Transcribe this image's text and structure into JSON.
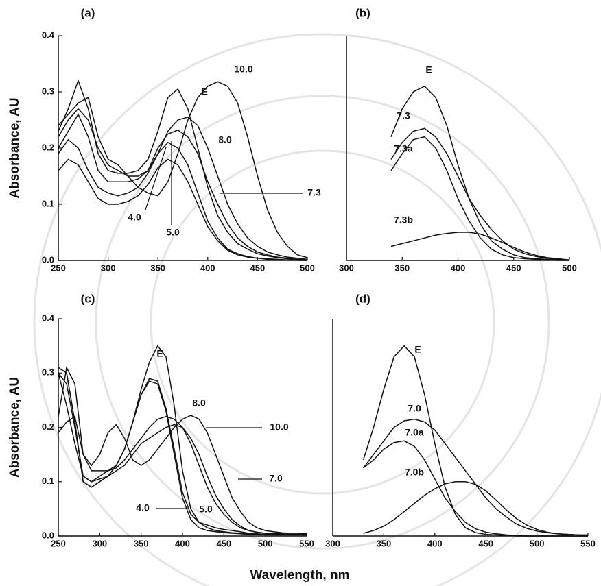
{
  "chart_data": [
    {
      "type": "line",
      "title": "(a)",
      "ylabel": "Absorbance, AU",
      "x": [
        250,
        260,
        270,
        280,
        290,
        300,
        310,
        320,
        330,
        340,
        350,
        360,
        370,
        380,
        390,
        400,
        410,
        420,
        430,
        440,
        450,
        460,
        470,
        480,
        490,
        500
      ],
      "xlim": [
        250,
        500
      ],
      "ylim": [
        0,
        0.4
      ],
      "xticks": [
        250,
        300,
        350,
        400,
        450,
        500
      ],
      "yticks": [
        {
          "value": 0,
          "label": "0.0"
        },
        0.1,
        0.2,
        0.3,
        0.4
      ],
      "series": [
        {
          "name": "E",
          "color": "#111111",
          "values": [
            0.23,
            0.27,
            0.32,
            0.27,
            0.19,
            0.16,
            0.155,
            0.155,
            0.16,
            0.18,
            0.23,
            0.29,
            0.305,
            0.27,
            0.2,
            0.13,
            0.08,
            0.05,
            0.03,
            0.02,
            0.012,
            0.008,
            0.005,
            0.003,
            0.002,
            0.001
          ]
        },
        {
          "name": "10.0",
          "color": "#111111",
          "values": [
            0.24,
            0.26,
            0.28,
            0.29,
            0.22,
            0.18,
            0.17,
            0.15,
            0.13,
            0.12,
            0.115,
            0.14,
            0.19,
            0.25,
            0.29,
            0.31,
            0.318,
            0.31,
            0.28,
            0.22,
            0.15,
            0.09,
            0.05,
            0.025,
            0.01,
            0.005
          ]
        },
        {
          "name": "8.0",
          "color": "#111111",
          "values": [
            0.22,
            0.25,
            0.27,
            0.25,
            0.2,
            0.17,
            0.16,
            0.15,
            0.15,
            0.16,
            0.19,
            0.23,
            0.25,
            0.255,
            0.24,
            0.2,
            0.15,
            0.1,
            0.065,
            0.04,
            0.025,
            0.015,
            0.01,
            0.006,
            0.004,
            0.002
          ]
        },
        {
          "name": "7.3",
          "color": "#111111",
          "values": [
            0.2,
            0.23,
            0.26,
            0.22,
            0.16,
            0.14,
            0.14,
            0.14,
            0.145,
            0.16,
            0.2,
            0.225,
            0.232,
            0.22,
            0.19,
            0.14,
            0.1,
            0.065,
            0.04,
            0.025,
            0.015,
            0.01,
            0.006,
            0.004,
            0.002,
            0.001
          ]
        },
        {
          "name": "5.0",
          "color": "#111111",
          "values": [
            0.19,
            0.215,
            0.2,
            0.16,
            0.13,
            0.12,
            0.115,
            0.12,
            0.13,
            0.155,
            0.19,
            0.21,
            0.2,
            0.17,
            0.12,
            0.07,
            0.04,
            0.02,
            0.012,
            0.007,
            0.004,
            0.003,
            0.002,
            0.001,
            0.001,
            0
          ]
        },
        {
          "name": "4.0",
          "color": "#111111",
          "values": [
            0.16,
            0.18,
            0.17,
            0.14,
            0.11,
            0.1,
            0.1,
            0.105,
            0.115,
            0.135,
            0.165,
            0.18,
            0.17,
            0.14,
            0.1,
            0.06,
            0.035,
            0.018,
            0.01,
            0.006,
            0.004,
            0.002,
            0.001,
            0.001,
            0,
            0
          ]
        }
      ]
    },
    {
      "type": "line",
      "title": "(b)",
      "x": [
        340,
        350,
        360,
        370,
        380,
        390,
        400,
        410,
        420,
        430,
        440,
        450,
        460,
        470,
        480,
        490,
        500
      ],
      "xlim": [
        300,
        500
      ],
      "ylim": [
        0,
        0.4
      ],
      "xticks": [
        300,
        350,
        400,
        450,
        500
      ],
      "series": [
        {
          "name": "E",
          "color": "#111111",
          "values": [
            0.22,
            0.27,
            0.3,
            0.31,
            0.29,
            0.24,
            0.17,
            0.11,
            0.065,
            0.035,
            0.02,
            0.01,
            0.005,
            0.003,
            0.002,
            0.001,
            0
          ]
        },
        {
          "name": "7.3",
          "color": "#111111",
          "values": [
            0.18,
            0.21,
            0.23,
            0.235,
            0.22,
            0.19,
            0.15,
            0.11,
            0.08,
            0.055,
            0.035,
            0.02,
            0.012,
            0.007,
            0.004,
            0.002,
            0.001
          ]
        },
        {
          "name": "7.3a",
          "color": "#111111",
          "values": [
            0.16,
            0.19,
            0.215,
            0.22,
            0.2,
            0.16,
            0.11,
            0.07,
            0.04,
            0.02,
            0.01,
            0.005,
            0.003,
            0.002,
            0.001,
            0,
            0
          ]
        },
        {
          "name": "7.3b",
          "color": "#111111",
          "values": [
            0.025,
            0.03,
            0.035,
            0.04,
            0.045,
            0.048,
            0.05,
            0.05,
            0.047,
            0.04,
            0.032,
            0.023,
            0.015,
            0.009,
            0.005,
            0.003,
            0.001
          ]
        }
      ]
    },
    {
      "type": "line",
      "title": "(c)",
      "ylabel": "Absorbance, AU",
      "xlabel": "Wavelength, nm",
      "x": [
        250,
        260,
        270,
        280,
        290,
        300,
        310,
        320,
        330,
        340,
        350,
        360,
        370,
        380,
        390,
        400,
        410,
        420,
        430,
        440,
        450,
        460,
        470,
        480,
        490,
        500,
        510,
        520,
        530,
        540,
        550
      ],
      "xlim": [
        250,
        550
      ],
      "ylim": [
        0,
        0.4
      ],
      "xticks": [
        250,
        300,
        350,
        400,
        450,
        500,
        550
      ],
      "yticks": [
        {
          "value": 0,
          "label": "0.0"
        },
        0.1,
        0.2,
        0.3,
        0.4
      ],
      "series": [
        {
          "name": "E",
          "color": "#111111",
          "values": [
            0.3,
            0.28,
            0.2,
            0.11,
            0.1,
            0.11,
            0.12,
            0.13,
            0.16,
            0.21,
            0.27,
            0.32,
            0.35,
            0.33,
            0.24,
            0.12,
            0.05,
            0.025,
            0.015,
            0.01,
            0.008,
            0.006,
            0.005,
            0.004,
            0.003,
            0.003,
            0.002,
            0.002,
            0.002,
            0.002,
            0.002
          ]
        },
        {
          "name": "8.0",
          "color": "#111111",
          "values": [
            0.22,
            0.31,
            0.28,
            0.15,
            0.12,
            0.12,
            0.12,
            0.125,
            0.14,
            0.16,
            0.18,
            0.2,
            0.215,
            0.22,
            0.215,
            0.2,
            0.17,
            0.13,
            0.09,
            0.06,
            0.04,
            0.025,
            0.015,
            0.01,
            0.007,
            0.005,
            0.004,
            0.004,
            0.003,
            0.003,
            0.003
          ]
        },
        {
          "name": "10.0",
          "color": "#111111",
          "values": [
            0.19,
            0.21,
            0.22,
            0.15,
            0.13,
            0.15,
            0.19,
            0.205,
            0.18,
            0.14,
            0.13,
            0.14,
            0.16,
            0.18,
            0.2,
            0.215,
            0.222,
            0.215,
            0.19,
            0.15,
            0.11,
            0.07,
            0.045,
            0.025,
            0.015,
            0.01,
            0.008,
            0.006,
            0.005,
            0.005,
            0.004
          ]
        },
        {
          "name": "7.0",
          "color": "#111111",
          "values": [
            0.3,
            0.24,
            0.17,
            0.11,
            0.1,
            0.105,
            0.11,
            0.12,
            0.13,
            0.15,
            0.17,
            0.18,
            0.19,
            0.2,
            0.205,
            0.2,
            0.18,
            0.15,
            0.11,
            0.075,
            0.05,
            0.03,
            0.018,
            0.01,
            0.007,
            0.005,
            0.004,
            0.003,
            0.003,
            0.003,
            0.003
          ]
        },
        {
          "name": "5.0",
          "color": "#111111",
          "values": [
            0.31,
            0.3,
            0.21,
            0.1,
            0.09,
            0.1,
            0.11,
            0.13,
            0.16,
            0.21,
            0.26,
            0.29,
            0.285,
            0.235,
            0.16,
            0.08,
            0.04,
            0.025,
            0.02,
            0.015,
            0.012,
            0.01,
            0.008,
            0.005,
            0.004,
            0.003,
            0.003,
            0.003,
            0.003,
            0.003,
            0.003
          ]
        },
        {
          "name": "4.0",
          "color": "#111111",
          "values": [
            0.31,
            0.3,
            0.21,
            0.1,
            0.09,
            0.1,
            0.11,
            0.13,
            0.16,
            0.21,
            0.26,
            0.285,
            0.28,
            0.23,
            0.15,
            0.07,
            0.03,
            0.015,
            0.01,
            0.008,
            0.006,
            0.005,
            0.004,
            0.003,
            0.003,
            0.002,
            0.002,
            0.002,
            0.002,
            0.002,
            0.002
          ]
        }
      ]
    },
    {
      "type": "line",
      "title": "(d)",
      "x": [
        330,
        340,
        350,
        360,
        370,
        380,
        390,
        400,
        410,
        420,
        430,
        440,
        450,
        460,
        470,
        480,
        490,
        500,
        510,
        520,
        530,
        540,
        550
      ],
      "xlim": [
        300,
        550
      ],
      "ylim": [
        0,
        0.4
      ],
      "xticks": [
        300,
        350,
        400,
        450,
        500,
        550
      ],
      "series": [
        {
          "name": "E",
          "color": "#111111",
          "values": [
            0.14,
            0.2,
            0.27,
            0.33,
            0.35,
            0.33,
            0.26,
            0.17,
            0.09,
            0.04,
            0.015,
            0.006,
            0.003,
            0.002,
            0.001,
            0,
            0,
            0,
            0,
            0,
            0,
            0,
            0
          ]
        },
        {
          "name": "7.0",
          "color": "#111111",
          "values": [
            0.125,
            0.15,
            0.175,
            0.2,
            0.212,
            0.215,
            0.21,
            0.195,
            0.17,
            0.145,
            0.12,
            0.095,
            0.07,
            0.05,
            0.035,
            0.022,
            0.014,
            0.009,
            0.006,
            0.004,
            0.003,
            0.002,
            0.002
          ]
        },
        {
          "name": "7.0a",
          "color": "#111111",
          "values": [
            0.125,
            0.14,
            0.16,
            0.172,
            0.175,
            0.165,
            0.14,
            0.105,
            0.07,
            0.045,
            0.025,
            0.013,
            0.007,
            0.004,
            0.002,
            0.001,
            0,
            0,
            0,
            0,
            0,
            0,
            0
          ]
        },
        {
          "name": "7.0b",
          "color": "#111111",
          "values": [
            0.005,
            0.01,
            0.018,
            0.03,
            0.045,
            0.06,
            0.075,
            0.087,
            0.096,
            0.1,
            0.1,
            0.095,
            0.083,
            0.066,
            0.048,
            0.032,
            0.02,
            0.012,
            0.007,
            0.004,
            0.003,
            0.002,
            0.001
          ]
        }
      ]
    }
  ]
}
